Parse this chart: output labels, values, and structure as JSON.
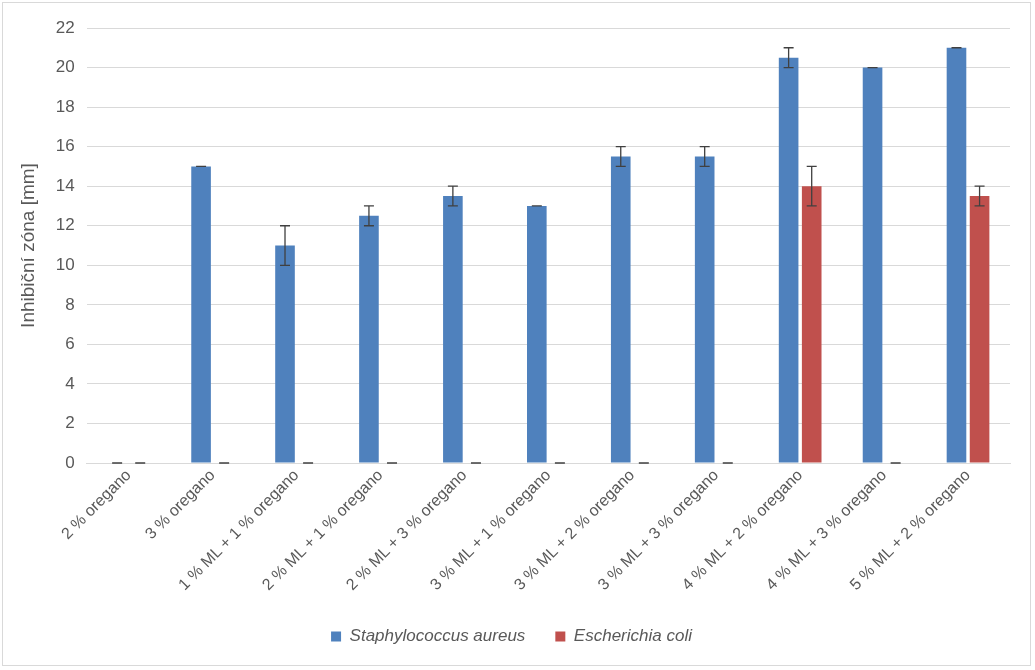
{
  "chart_data": {
    "type": "bar",
    "ylabel": "Inhibiční zóna [mm]",
    "categories": [
      "2 % oregano",
      "3 % oregano",
      "1 % ML + 1 % oregano",
      "2 % ML + 1 % oregano",
      "2 % ML + 3 % oregano",
      "3 % ML + 1 % oregano",
      "3 % ML + 2 % oregano",
      "3 % ML + 3 % oregano",
      "4 % ML + 2 % oregano",
      "4 % ML + 3 % oregano",
      "5 % ML + 2 % oregano"
    ],
    "series": [
      {
        "name": "Staphylococcus aureus",
        "color": "#4f81bd",
        "values": [
          0,
          15,
          11,
          12.5,
          13.5,
          13,
          15.5,
          15.5,
          20.5,
          20,
          21
        ],
        "errors": [
          0,
          0,
          1,
          0.5,
          0.5,
          0,
          0.5,
          0.5,
          0.5,
          0,
          0
        ]
      },
      {
        "name": "Escherichia coli",
        "color": "#c0504d",
        "values": [
          0,
          0,
          0,
          0,
          0,
          0,
          0,
          0,
          14,
          0,
          13.5
        ],
        "errors": [
          0,
          0,
          0,
          0,
          0,
          0,
          0,
          0,
          1,
          0,
          0.5
        ]
      }
    ],
    "ylim": [
      0,
      22
    ],
    "yticks": [
      0,
      2,
      4,
      6,
      8,
      10,
      12,
      14,
      16,
      18,
      20,
      22
    ],
    "grid": "y",
    "legend": "bottom"
  }
}
